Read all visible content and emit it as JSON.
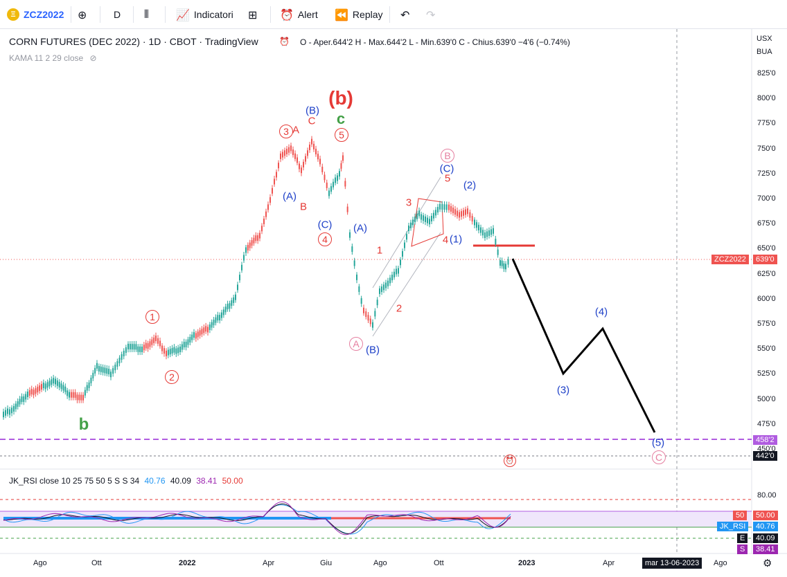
{
  "toolbar": {
    "symbol": "ZCZ2022",
    "interval": "D",
    "indicators": "Indicatori",
    "alert": "Alert",
    "replay": "Replay",
    "icons": [
      "plus-circle-icon",
      "candles-icon",
      "indicators-icon",
      "templates-icon",
      "alert-icon",
      "replay-icon",
      "undo-icon",
      "redo-icon"
    ]
  },
  "legend": {
    "title": "CORN FUTURES (DEC 2022) · 1D · CBOT · TradingView",
    "ohlc": "O - Aper.644'2  H - Max.644'2  L - Min.639'0  C - Chius.639'0  −4'6 (−0.74%)",
    "indicator": "KAMA 11 2 29 close"
  },
  "price_axis": {
    "currency": "USX",
    "unit": "BUA",
    "ticks": [
      "825'0",
      "800'0",
      "775'0",
      "750'0",
      "725'0",
      "700'0",
      "675'0",
      "650'0",
      "625'0",
      "600'0",
      "575'0",
      "550'0",
      "525'0",
      "500'0",
      "475'0",
      "450'0"
    ],
    "last_price_label": "ZCZ2022",
    "last_price": "639'0",
    "level_1": "458'2",
    "level_2": "442'0"
  },
  "time_axis": {
    "labels": [
      "Ago",
      "Ott",
      "2022",
      "Apr",
      "Giu",
      "Ago",
      "Ott",
      "2023",
      "Apr",
      "Ago"
    ],
    "cursor_label": "mar 13-06-2023"
  },
  "wave_labels": {
    "b_big": "(b)",
    "c_green": "c",
    "b_green": "b",
    "circ1": "1",
    "circ2": "2",
    "circ3": "3",
    "circ4": "4",
    "circ5": "5",
    "A_red": "A",
    "B_red": "B",
    "C_red": "C",
    "paren_A": "(A)",
    "paren_B": "(B)",
    "paren_C": "(C)",
    "paren_A2": "(A)",
    "paren_B2": "(B)",
    "paren_C2": "(C)",
    "circ_A": "A",
    "circ_B": "B",
    "circ_C": "C",
    "n1": "1",
    "n2": "2",
    "n3": "3",
    "n4": "4",
    "n5": "5",
    "p1": "(1)",
    "p2": "(2)",
    "p3": "(3)",
    "p4": "(4)",
    "p5": "(5)"
  },
  "rsi": {
    "legend_name": "JK_RSI",
    "legend_params": "close 10 25 75 50 5 S S 34",
    "v1": "40.76",
    "v2": "40.09",
    "v3": "38.41",
    "v4": "50.00",
    "axis_80": "80.00",
    "tag_50": "50",
    "tag_50v": "50.00",
    "tag_rsi": "JK_RSI",
    "tag_rsiv": "40.76",
    "tag_e": "E",
    "tag_ev": "40.09",
    "tag_s": "S",
    "tag_sv": "38.41"
  },
  "colors": {
    "up": "#26a69a",
    "down": "#ef5350",
    "wave_red": "#e53935",
    "wave_blue": "#1e40c8",
    "wave_green": "#43a047",
    "dashed_purple": "#b05ce0"
  }
}
